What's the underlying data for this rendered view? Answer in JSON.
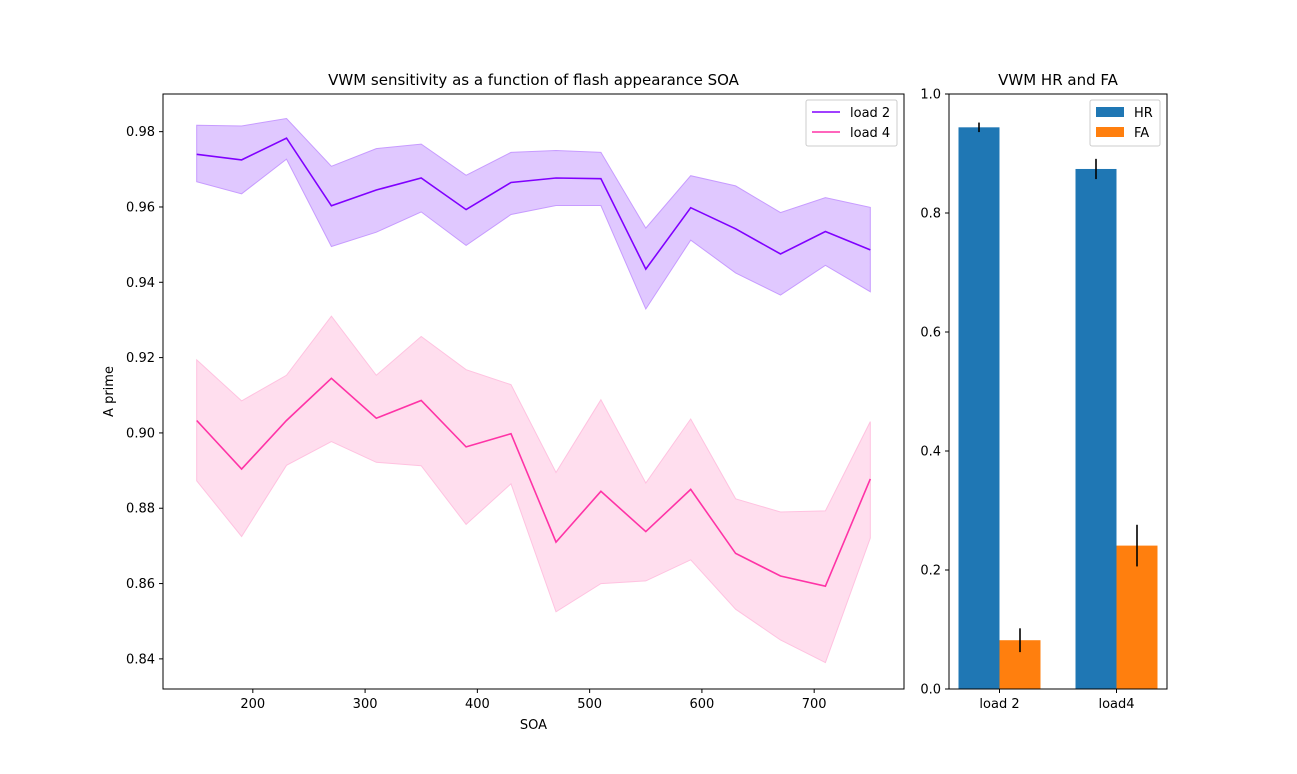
{
  "chart_data": [
    {
      "type": "line",
      "title": "VWM sensitivity as a function of flash appearance SOA",
      "xlabel": "SOA",
      "ylabel": "A prime",
      "xlim": [
        120,
        780
      ],
      "ylim": [
        0.832,
        0.99
      ],
      "xticks": [
        200,
        300,
        400,
        500,
        600,
        700
      ],
      "yticks": [
        0.84,
        0.86,
        0.88,
        0.9,
        0.92,
        0.94,
        0.96,
        0.98
      ],
      "ytick_labels": [
        "0.84",
        "0.86",
        "0.88",
        "0.90",
        "0.92",
        "0.94",
        "0.96",
        "0.98"
      ],
      "legend_position": "upper right",
      "x": [
        150,
        190,
        230,
        270,
        310,
        350,
        390,
        430,
        470,
        510,
        550,
        590,
        630,
        670,
        710,
        750
      ],
      "series": [
        {
          "name": "load 2",
          "color": "#8000ff",
          "band_color": "#c79bff",
          "values": [
            0.974,
            0.9725,
            0.9783,
            0.9603,
            0.9645,
            0.9677,
            0.9593,
            0.9665,
            0.9677,
            0.9675,
            0.9435,
            0.9598,
            0.9542,
            0.9475,
            0.9535,
            0.9486
          ],
          "lower": [
            0.9667,
            0.9635,
            0.9727,
            0.9495,
            0.9533,
            0.9587,
            0.9498,
            0.958,
            0.9604,
            0.9604,
            0.9329,
            0.9512,
            0.9425,
            0.9366,
            0.9445,
            0.9375
          ],
          "upper": [
            0.9817,
            0.9815,
            0.9835,
            0.9708,
            0.9755,
            0.9767,
            0.9684,
            0.9745,
            0.975,
            0.9745,
            0.9544,
            0.9683,
            0.9656,
            0.9585,
            0.9625,
            0.9599
          ]
        },
        {
          "name": "load 4",
          "color": "#ff33a6",
          "band_color": "#ffc2e0",
          "values": [
            0.9033,
            0.8904,
            0.9033,
            0.9145,
            0.9039,
            0.9086,
            0.8963,
            0.8998,
            0.871,
            0.8845,
            0.8738,
            0.885,
            0.868,
            0.862,
            0.8593,
            0.8878
          ],
          "lower": [
            0.8873,
            0.8725,
            0.8914,
            0.8977,
            0.8922,
            0.8913,
            0.8757,
            0.8865,
            0.8525,
            0.86,
            0.8607,
            0.8663,
            0.8532,
            0.845,
            0.839,
            0.8721
          ],
          "upper": [
            0.9194,
            0.9085,
            0.9153,
            0.931,
            0.9153,
            0.9256,
            0.9168,
            0.9128,
            0.8895,
            0.9088,
            0.8867,
            0.9037,
            0.8825,
            0.879,
            0.8793,
            0.903
          ]
        }
      ]
    },
    {
      "type": "bar",
      "title": "VWM HR and FA",
      "categories": [
        "load 2",
        "load4"
      ],
      "ylim": [
        0,
        1.0
      ],
      "yticks": [
        0,
        0.2,
        0.4,
        0.6,
        0.8,
        1.0
      ],
      "ytick_labels": [
        "0.0",
        "0.2",
        "0.4",
        "0.6",
        "0.8",
        "1.0"
      ],
      "legend_position": "upper right",
      "series": [
        {
          "name": "HR",
          "color": "#1f77b4",
          "values": [
            0.944,
            0.874
          ],
          "errors": [
            0.008,
            0.017
          ]
        },
        {
          "name": "FA",
          "color": "#ff7f0e",
          "values": [
            0.082,
            0.241
          ],
          "errors": [
            0.02,
            0.035
          ]
        }
      ]
    }
  ]
}
